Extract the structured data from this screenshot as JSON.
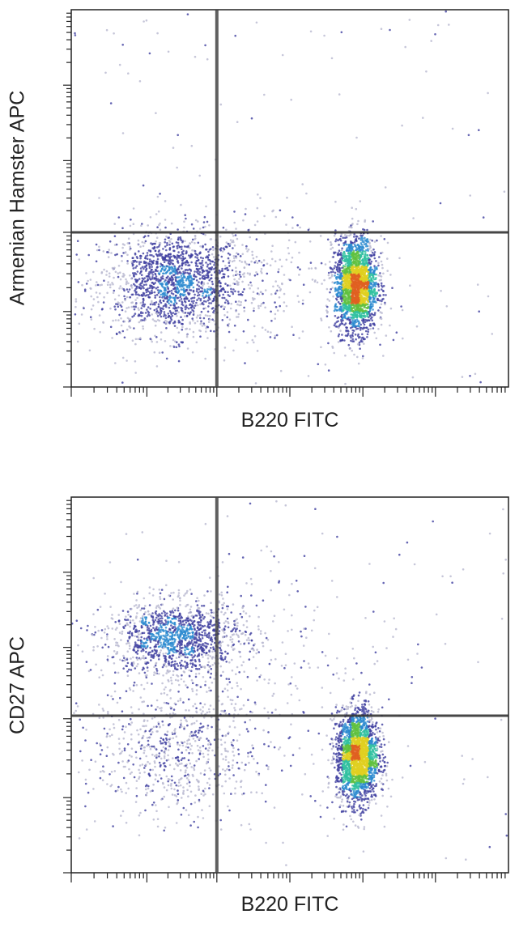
{
  "chart_data": [
    {
      "type": "scatter",
      "subtype": "flow-cytometry-density-dot-plot",
      "xlabel": "B220 FITC",
      "ylabel": "Armenian Hamster APC",
      "xscale": "log",
      "yscale": "log",
      "xlim": [
        0,
        1000
      ],
      "ylim": [
        0,
        1000
      ],
      "gates": {
        "x": 333,
        "y": 410
      },
      "populations": [
        {
          "cx": 235,
          "cy": 275,
          "sx": 85,
          "sy": 70,
          "n": 1600
        },
        {
          "cx": 652,
          "cy": 270,
          "sx": 24,
          "sy": 62,
          "n": 2200
        },
        {
          "cx": 420,
          "cy": 300,
          "sx": 150,
          "sy": 110,
          "n": 300
        }
      ],
      "colormap": [
        "#b8b8d0",
        "#4040a0",
        "#2a8ad0",
        "#30c0a0",
        "#60c040",
        "#e0d020",
        "#e06020"
      ]
    },
    {
      "type": "scatter",
      "subtype": "flow-cytometry-density-dot-plot",
      "xlabel": "B220 FITC",
      "ylabel": "CD27 APC",
      "xscale": "log",
      "yscale": "log",
      "xlim": [
        0,
        1000
      ],
      "ylim": [
        0,
        1000
      ],
      "gates": {
        "x": 333,
        "y": 418
      },
      "populations": [
        {
          "cx": 240,
          "cy": 625,
          "sx": 80,
          "sy": 50,
          "n": 1300
        },
        {
          "cx": 240,
          "cy": 330,
          "sx": 95,
          "sy": 90,
          "n": 700
        },
        {
          "cx": 655,
          "cy": 310,
          "sx": 24,
          "sy": 62,
          "n": 2200
        },
        {
          "cx": 450,
          "cy": 550,
          "sx": 170,
          "sy": 160,
          "n": 250
        }
      ],
      "colormap": [
        "#b8b8d0",
        "#4040a0",
        "#2a8ad0",
        "#30c0a0",
        "#60c040",
        "#e0d020",
        "#e06020"
      ]
    }
  ]
}
